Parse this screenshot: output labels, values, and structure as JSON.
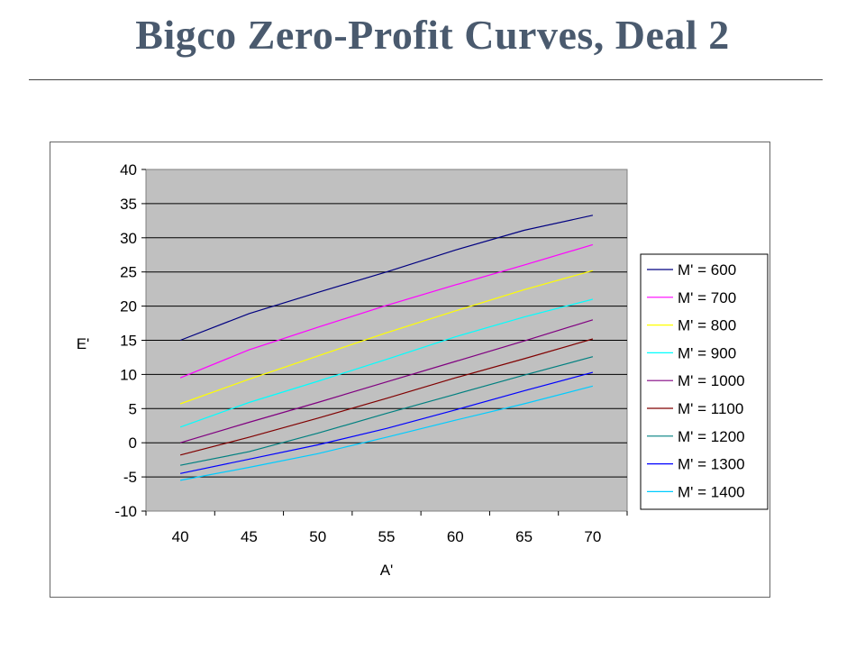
{
  "slide": {
    "title": "Bigco Zero-Profit Curves, Deal 2"
  },
  "chart_data": {
    "type": "line",
    "title": "",
    "xlabel": "A'",
    "ylabel": "E'",
    "x": [
      40,
      45,
      50,
      55,
      60,
      65,
      70
    ],
    "xlim": [
      37.5,
      72.5
    ],
    "ylim": [
      -10,
      40
    ],
    "x_ticks": [
      "40",
      "45",
      "50",
      "55",
      "60",
      "65",
      "70"
    ],
    "y_ticks": [
      "-10",
      "-5",
      "0",
      "5",
      "10",
      "15",
      "20",
      "25",
      "30",
      "35",
      "40"
    ],
    "y_tick_values": [
      -10,
      -5,
      0,
      5,
      10,
      15,
      20,
      25,
      30,
      35,
      40
    ],
    "grid": true,
    "plot_background": "#c0c0c0",
    "legend_position": "right",
    "series": [
      {
        "name": "M' = 600",
        "color": "#000080",
        "values": [
          15.0,
          18.9,
          22.0,
          25.0,
          28.2,
          31.1,
          33.3
        ]
      },
      {
        "name": "M' = 700",
        "color": "#ff00ff",
        "values": [
          9.5,
          13.6,
          16.9,
          20.1,
          23.1,
          26.0,
          29.0
        ]
      },
      {
        "name": "M' = 800",
        "color": "#ffff00",
        "values": [
          5.7,
          9.3,
          12.7,
          16.1,
          19.3,
          22.4,
          25.2
        ]
      },
      {
        "name": "M' = 900",
        "color": "#00ffff",
        "values": [
          2.3,
          5.9,
          9.0,
          12.2,
          15.5,
          18.4,
          21.0
        ]
      },
      {
        "name": "M' = 1000",
        "color": "#800080",
        "values": [
          0.0,
          3.0,
          5.9,
          8.9,
          11.9,
          14.9,
          18.0
        ]
      },
      {
        "name": "M' = 1100",
        "color": "#800000",
        "values": [
          -1.8,
          0.8,
          3.6,
          6.5,
          9.5,
          12.3,
          15.2
        ]
      },
      {
        "name": "M' = 1200",
        "color": "#008080",
        "values": [
          -3.3,
          -1.3,
          1.4,
          4.3,
          7.1,
          9.9,
          12.6
        ]
      },
      {
        "name": "M' = 1300",
        "color": "#0000ff",
        "values": [
          -4.5,
          -2.4,
          -0.3,
          2.1,
          4.8,
          7.6,
          10.3
        ]
      },
      {
        "name": "M' = 1400",
        "color": "#00ccff",
        "values": [
          -5.5,
          -3.6,
          -1.6,
          0.8,
          3.3,
          5.7,
          8.3
        ]
      }
    ]
  }
}
